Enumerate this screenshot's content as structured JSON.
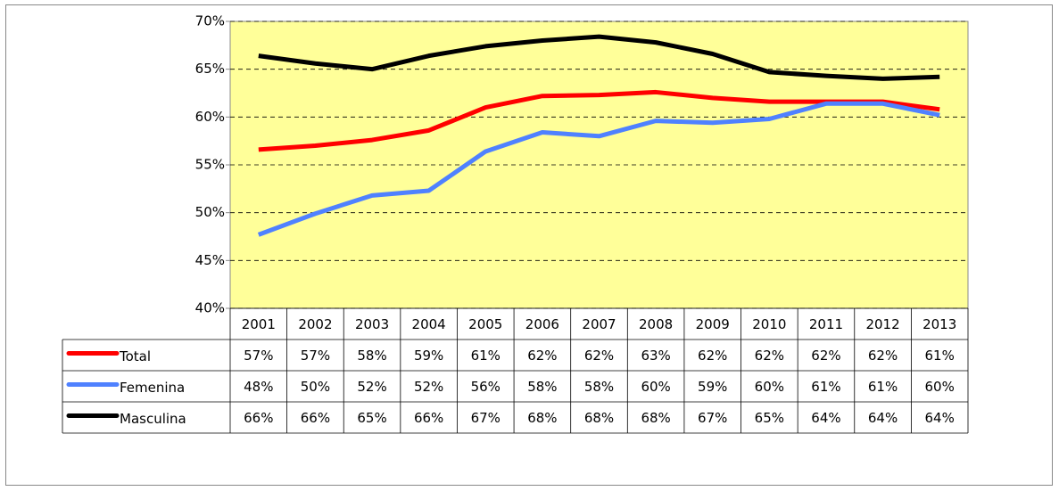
{
  "chart_data": {
    "type": "line",
    "categories": [
      "2001",
      "2002",
      "2003",
      "2004",
      "2005",
      "2006",
      "2007",
      "2008",
      "2009",
      "2010",
      "2011",
      "2012",
      "2013"
    ],
    "series": [
      {
        "name": "Total",
        "color": "#ff0000",
        "values": [
          56.6,
          57.0,
          57.6,
          58.6,
          61.0,
          62.2,
          62.3,
          62.6,
          62.0,
          61.6,
          61.6,
          61.6,
          60.8
        ],
        "value_labels": [
          "57%",
          "57%",
          "58%",
          "59%",
          "61%",
          "62%",
          "62%",
          "63%",
          "62%",
          "62%",
          "62%",
          "62%",
          "61%"
        ]
      },
      {
        "name": "Femenina",
        "color": "#4f81ff",
        "values": [
          47.7,
          49.9,
          51.8,
          52.3,
          56.4,
          58.4,
          58.0,
          59.6,
          59.4,
          59.8,
          61.4,
          61.4,
          60.2
        ],
        "value_labels": [
          "48%",
          "50%",
          "52%",
          "52%",
          "56%",
          "58%",
          "58%",
          "60%",
          "59%",
          "60%",
          "61%",
          "61%",
          "60%"
        ]
      },
      {
        "name": "Masculina",
        "color": "#000000",
        "values": [
          66.4,
          65.6,
          65.0,
          66.4,
          67.4,
          68.0,
          68.4,
          67.8,
          66.6,
          64.7,
          64.3,
          64.0,
          64.2
        ],
        "value_labels": [
          "66%",
          "66%",
          "65%",
          "66%",
          "67%",
          "68%",
          "68%",
          "68%",
          "67%",
          "65%",
          "64%",
          "64%",
          "64%"
        ]
      }
    ],
    "ylim": [
      40,
      70
    ],
    "yticks": [
      {
        "value": 40,
        "label": "40%"
      },
      {
        "value": 45,
        "label": "45%"
      },
      {
        "value": 50,
        "label": "50%"
      },
      {
        "value": 55,
        "label": "55%"
      },
      {
        "value": 60,
        "label": "60%"
      },
      {
        "value": 65,
        "label": "65%"
      },
      {
        "value": 70,
        "label": "70%"
      }
    ],
    "grid": true,
    "plot_background": "#ffff99"
  }
}
